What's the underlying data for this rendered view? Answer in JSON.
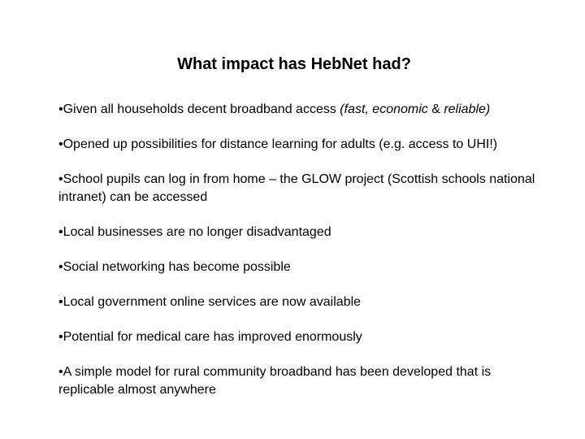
{
  "slide": {
    "title": "What impact has HebNet had?",
    "bullet_marker": "•",
    "bullets": [
      {
        "text": "Given all households decent broadband access ",
        "emphasis_1": "(fast, economic",
        "connector": " & ",
        "emphasis_2": "reliable)"
      },
      {
        "text": "Opened up possibilities for distance learning for adults (e.g. access to UHI!)"
      },
      {
        "text": "School pupils can log in from home – the GLOW project (Scottish schools national intranet) can be accessed"
      },
      {
        "text": "Local businesses are no longer disadvantaged"
      },
      {
        "text": "Social networking has become possible"
      },
      {
        "text": "Local government online services are now available"
      },
      {
        "text": "Potential for medical care has improved enormously"
      },
      {
        "text": "A simple model for rural community broadband has been developed that is replicable almost anywhere"
      }
    ]
  }
}
